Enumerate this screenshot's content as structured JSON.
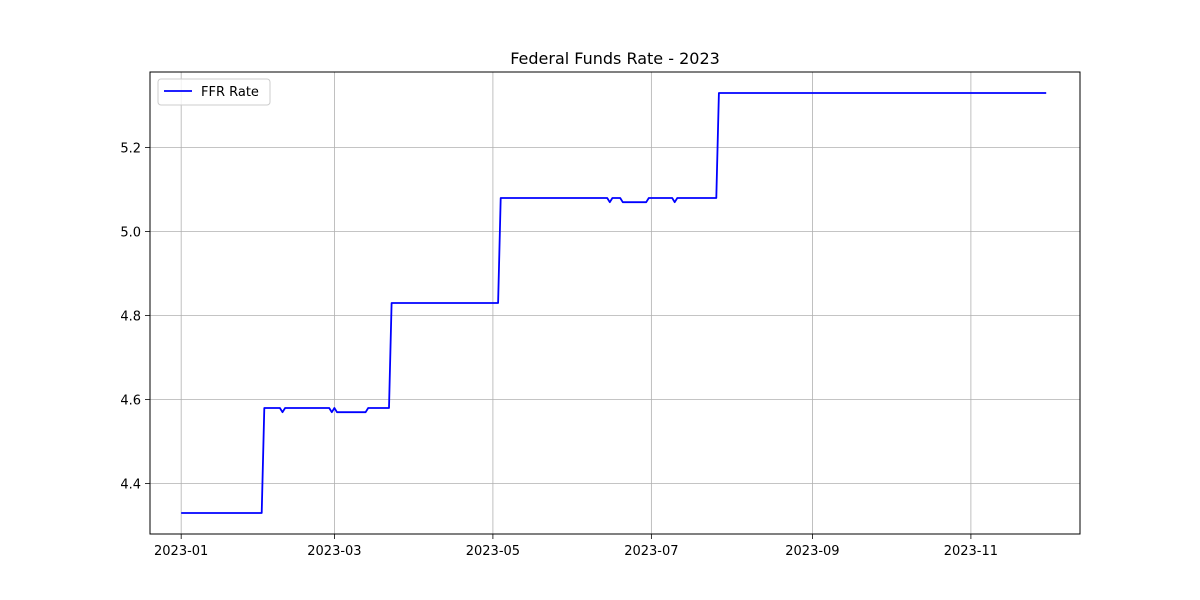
{
  "chart_data": {
    "type": "line",
    "title": "Federal Funds Rate - 2023",
    "xlabel": "",
    "ylabel": "",
    "xlim": [
      "2022-12-20",
      "2023-12-13"
    ],
    "ylim": [
      4.28,
      5.38
    ],
    "x_ticks": [
      "2023-01",
      "2023-03",
      "2023-05",
      "2023-07",
      "2023-09",
      "2023-11"
    ],
    "y_ticks": [
      4.4,
      4.6,
      4.8,
      5.0,
      5.2
    ],
    "grid": true,
    "legend": "top-left",
    "series": [
      {
        "name": "FFR Rate",
        "color": "#0000ff",
        "points": [
          [
            "2023-01-01",
            4.33
          ],
          [
            "2023-02-01",
            4.33
          ],
          [
            "2023-02-02",
            4.58
          ],
          [
            "2023-02-08",
            4.58
          ],
          [
            "2023-02-09",
            4.57
          ],
          [
            "2023-02-10",
            4.58
          ],
          [
            "2023-02-27",
            4.58
          ],
          [
            "2023-02-28",
            4.57
          ],
          [
            "2023-03-01",
            4.58
          ],
          [
            "2023-03-02",
            4.57
          ],
          [
            "2023-03-13",
            4.57
          ],
          [
            "2023-03-14",
            4.58
          ],
          [
            "2023-03-22",
            4.58
          ],
          [
            "2023-03-23",
            4.83
          ],
          [
            "2023-05-03",
            4.83
          ],
          [
            "2023-05-04",
            5.08
          ],
          [
            "2023-06-14",
            5.08
          ],
          [
            "2023-06-15",
            5.07
          ],
          [
            "2023-06-16",
            5.08
          ],
          [
            "2023-06-19",
            5.08
          ],
          [
            "2023-06-20",
            5.07
          ],
          [
            "2023-06-29",
            5.07
          ],
          [
            "2023-06-30",
            5.08
          ],
          [
            "2023-07-09",
            5.08
          ],
          [
            "2023-07-10",
            5.07
          ],
          [
            "2023-07-11",
            5.08
          ],
          [
            "2023-07-26",
            5.08
          ],
          [
            "2023-07-27",
            5.33
          ],
          [
            "2023-11-30",
            5.33
          ]
        ]
      }
    ]
  }
}
